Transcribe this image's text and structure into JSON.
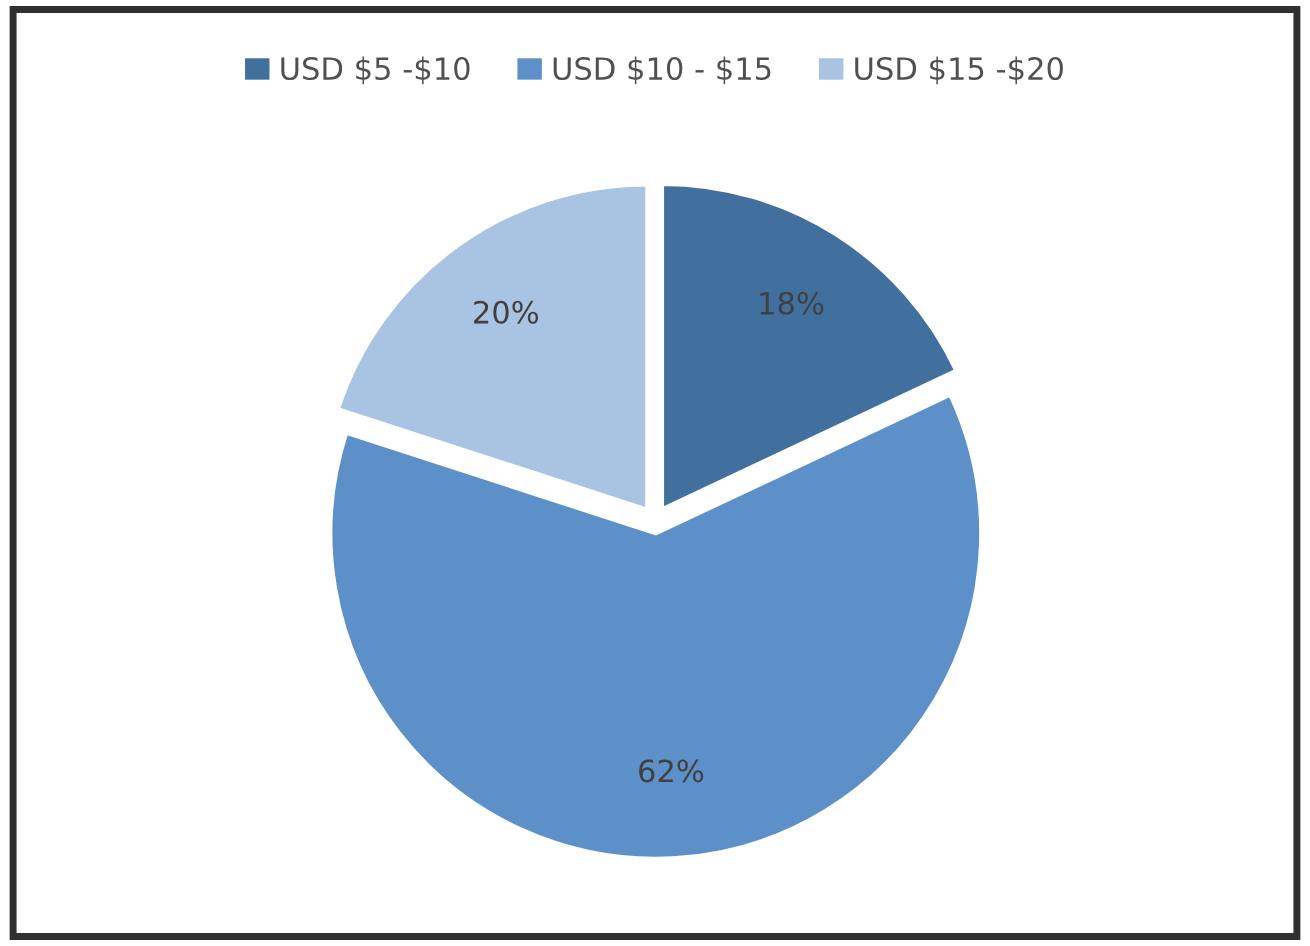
{
  "chart_data": {
    "type": "pie",
    "categories": [
      "USD $5 -$10",
      "USD $10 - $15",
      "USD $15 -$20"
    ],
    "values": [
      18,
      62,
      20
    ],
    "colors": [
      "#41709f",
      "#5d90c8",
      "#a9c3e2"
    ],
    "value_labels": [
      "18%",
      "62%",
      "20%"
    ],
    "legend": "top"
  }
}
